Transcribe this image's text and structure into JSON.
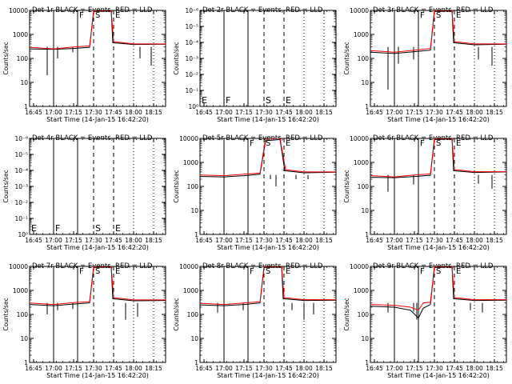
{
  "figure": {
    "xlabel": "Start Time (14-Jan-15 16:42:20)",
    "ylabel": "Counts/sec",
    "x_tick_labels": [
      "16:45",
      "17:00",
      "17:15",
      "17:30",
      "17:45",
      "18:00",
      "18:15"
    ],
    "colors": {
      "events": "#000000",
      "lld": "#ff0000"
    }
  },
  "chart_data": [
    {
      "type": "line",
      "title": "Det 1r BLACK = Events, RED = LLD",
      "x_range": [
        "16:42",
        "18:24"
      ],
      "y_scale": "log",
      "ylim": [
        1,
        10000
      ],
      "y_tick_labels": [
        "1",
        "10",
        "100",
        "1000",
        "10000"
      ],
      "solid_times": [
        "17:00",
        "17:18"
      ],
      "dashed_times": [
        "17:30",
        "17:45"
      ],
      "dotted_times": [
        "18:00",
        "18:15"
      ],
      "markers": [
        {
          "label": "F",
          "time": "17:18"
        },
        {
          "label": "S",
          "time": "17:30"
        },
        {
          "label": "E",
          "time": "17:45"
        }
      ],
      "series": [
        {
          "values": [
            [
              16.7,
              250
            ],
            [
              17.0,
              240
            ],
            [
              17.25,
              260
            ],
            [
              17.45,
              290
            ],
            [
              17.5,
              9000
            ],
            [
              17.72,
              9500
            ],
            [
              17.74,
              450
            ],
            [
              18.0,
              380
            ],
            [
              18.4,
              390
            ]
          ]
        },
        {
          "values": [
            [
              16.7,
              290
            ],
            [
              17.0,
              250
            ],
            [
              17.25,
              300
            ],
            [
              17.45,
              330
            ],
            [
              17.5,
              10000
            ],
            [
              17.72,
              10000
            ],
            [
              17.75,
              500
            ],
            [
              18.0,
              400
            ],
            [
              18.4,
              400
            ]
          ]
        }
      ],
      "spikes": [
        [
          16.92,
          20
        ],
        [
          17.05,
          100
        ],
        [
          17.24,
          180
        ],
        [
          18.08,
          100
        ],
        [
          18.22,
          50
        ]
      ]
    },
    {
      "type": "line",
      "title": "Det 2r BLACK = Events, RED = LLD",
      "x_range": [
        "16:42",
        "18:24"
      ],
      "y_scale": "log",
      "ylim": [
        1,
        1e-06
      ],
      "y_tick_labels": [
        "10⁰",
        "10⁻¹",
        "10⁻²",
        "10⁻³",
        "10⁻⁴",
        "10⁻⁵",
        "10⁻⁶"
      ],
      "solid_times": [
        "17:00",
        "17:18"
      ],
      "dashed_times": [
        "17:30",
        "17:45"
      ],
      "dotted_times": [
        "18:00",
        "18:15"
      ],
      "markers": [
        {
          "label": "F",
          "time": "17:00"
        },
        {
          "label": "S",
          "time": "17:30"
        },
        {
          "label": "E",
          "time": "17:45"
        }
      ],
      "series": [],
      "spikes": []
    },
    {
      "type": "line",
      "title": "Det 3r BLACK = Events, RED = LLD",
      "x_range": [
        "16:42",
        "18:24"
      ],
      "y_scale": "log",
      "ylim": [
        1,
        10000
      ],
      "y_tick_labels": [
        "1",
        "10",
        "100",
        "1000",
        "10000"
      ],
      "solid_times": [
        "17:00",
        "17:18"
      ],
      "dashed_times": [
        "17:30",
        "17:45"
      ],
      "dotted_times": [
        "18:00",
        "18:15"
      ],
      "markers": [
        {
          "label": "F",
          "time": "17:18"
        },
        {
          "label": "S",
          "time": "17:30"
        },
        {
          "label": "E",
          "time": "17:45"
        }
      ],
      "series": [
        {
          "values": [
            [
              16.7,
              180
            ],
            [
              17.0,
              160
            ],
            [
              17.25,
              190
            ],
            [
              17.45,
              220
            ],
            [
              17.5,
              9000
            ],
            [
              17.72,
              9500
            ],
            [
              17.74,
              450
            ],
            [
              18.0,
              370
            ],
            [
              18.4,
              390
            ]
          ]
        },
        {
          "values": [
            [
              16.7,
              210
            ],
            [
              17.0,
              180
            ],
            [
              17.25,
              220
            ],
            [
              17.45,
              260
            ],
            [
              17.5,
              10000
            ],
            [
              17.72,
              10000
            ],
            [
              17.75,
              500
            ],
            [
              18.0,
              400
            ],
            [
              18.4,
              400
            ]
          ]
        }
      ],
      "spikes": [
        [
          16.92,
          5
        ],
        [
          17.05,
          60
        ],
        [
          17.24,
          90
        ],
        [
          18.05,
          90
        ],
        [
          18.22,
          50
        ]
      ]
    },
    {
      "type": "line",
      "title": "Det 4r BLACK = Events, RED = LLD",
      "x_range": [
        "16:42",
        "18:24"
      ],
      "y_scale": "log",
      "ylim": [
        1,
        1e-06
      ],
      "y_tick_labels": [
        "10⁰",
        "10⁻¹",
        "10⁻²",
        "10⁻³",
        "10⁻⁴",
        "10⁻⁵",
        "10⁻⁶"
      ],
      "solid_times": [
        "17:00",
        "17:18"
      ],
      "dashed_times": [
        "17:30",
        "17:45"
      ],
      "dotted_times": [
        "18:00",
        "18:15"
      ],
      "markers": [
        {
          "label": "F",
          "time": "17:00"
        },
        {
          "label": "S",
          "time": "17:30"
        },
        {
          "label": "E",
          "time": "17:45"
        }
      ],
      "series": [],
      "spikes": []
    },
    {
      "type": "line",
      "title": "Det 5r BLACK = Events, RED = LLD",
      "x_range": [
        "16:42",
        "18:24"
      ],
      "y_scale": "log",
      "ylim": [
        1,
        10000
      ],
      "y_tick_labels": [
        "1",
        "10",
        "100",
        "1000",
        "10000"
      ],
      "solid_times": [
        "17:00",
        "17:18"
      ],
      "dashed_times": [
        "17:30",
        "17:45"
      ],
      "dotted_times": [
        "18:00",
        "18:15"
      ],
      "markers": [
        {
          "label": "F",
          "time": "17:18"
        },
        {
          "label": "S",
          "time": "17:30"
        },
        {
          "label": "E",
          "time": "17:45"
        }
      ],
      "series": [
        {
          "values": [
            [
              16.7,
              260
            ],
            [
              17.0,
              250
            ],
            [
              17.25,
              280
            ],
            [
              17.45,
              320
            ],
            [
              17.52,
              8000
            ],
            [
              17.7,
              9000
            ],
            [
              17.76,
              450
            ],
            [
              18.0,
              370
            ],
            [
              18.4,
              390
            ]
          ]
        },
        {
          "values": [
            [
              16.7,
              300
            ],
            [
              17.0,
              280
            ],
            [
              17.25,
              320
            ],
            [
              17.45,
              360
            ],
            [
              17.52,
              10000
            ],
            [
              17.7,
              10000
            ],
            [
              17.77,
              500
            ],
            [
              18.0,
              400
            ],
            [
              18.4,
              400
            ]
          ]
        }
      ],
      "spikes": [
        [
          17.58,
          200
        ],
        [
          17.65,
          100
        ],
        [
          17.9,
          200
        ],
        [
          18.05,
          200
        ]
      ]
    },
    {
      "type": "line",
      "title": "Det 6r BLACK = Events, RED = LLD",
      "x_range": [
        "16:42",
        "18:24"
      ],
      "y_scale": "log",
      "ylim": [
        1,
        10000
      ],
      "y_tick_labels": [
        "1",
        "10",
        "100",
        "1000",
        "10000"
      ],
      "solid_times": [
        "17:00",
        "17:18"
      ],
      "dashed_times": [
        "17:30",
        "17:45"
      ],
      "dotted_times": [
        "18:00",
        "18:15"
      ],
      "markers": [
        {
          "label": "F",
          "time": "17:18"
        },
        {
          "label": "S",
          "time": "17:30"
        },
        {
          "label": "E",
          "time": "17:45"
        }
      ],
      "series": [
        {
          "values": [
            [
              16.7,
              240
            ],
            [
              17.0,
              230
            ],
            [
              17.25,
              260
            ],
            [
              17.45,
              290
            ],
            [
              17.5,
              9000
            ],
            [
              17.72,
              9500
            ],
            [
              17.74,
              450
            ],
            [
              18.0,
              380
            ],
            [
              18.4,
              400
            ]
          ]
        },
        {
          "values": [
            [
              16.7,
              280
            ],
            [
              17.0,
              250
            ],
            [
              17.25,
              300
            ],
            [
              17.45,
              330
            ],
            [
              17.5,
              10000
            ],
            [
              17.72,
              10000
            ],
            [
              17.75,
              500
            ],
            [
              18.0,
              410
            ],
            [
              18.4,
              410
            ]
          ]
        }
      ],
      "spikes": [
        [
          16.92,
          60
        ],
        [
          17.24,
          120
        ],
        [
          18.05,
          130
        ],
        [
          18.22,
          80
        ]
      ]
    },
    {
      "type": "line",
      "title": "Det 7r BLACK = Events, RED = LLD",
      "x_range": [
        "16:42",
        "18:24"
      ],
      "y_scale": "log",
      "ylim": [
        1,
        10000
      ],
      "y_tick_labels": [
        "1",
        "10",
        "100",
        "1000",
        "10000"
      ],
      "solid_times": [
        "17:00",
        "17:18"
      ],
      "dashed_times": [
        "17:30",
        "17:45"
      ],
      "dotted_times": [
        "18:00",
        "18:15"
      ],
      "markers": [
        {
          "label": "F",
          "time": "17:18"
        },
        {
          "label": "S",
          "time": "17:30"
        },
        {
          "label": "E",
          "time": "17:45"
        }
      ],
      "series": [
        {
          "values": [
            [
              16.7,
              260
            ],
            [
              17.0,
              230
            ],
            [
              17.25,
              270
            ],
            [
              17.45,
              300
            ],
            [
              17.5,
              9000
            ],
            [
              17.72,
              9500
            ],
            [
              17.74,
              450
            ],
            [
              18.0,
              370
            ],
            [
              18.4,
              380
            ]
          ]
        },
        {
          "values": [
            [
              16.7,
              300
            ],
            [
              17.0,
              260
            ],
            [
              17.25,
              310
            ],
            [
              17.45,
              340
            ],
            [
              17.5,
              10000
            ],
            [
              17.72,
              10000
            ],
            [
              17.75,
              500
            ],
            [
              18.0,
              400
            ],
            [
              18.4,
              400
            ]
          ]
        }
      ],
      "spikes": [
        [
          16.92,
          100
        ],
        [
          17.05,
          150
        ],
        [
          17.24,
          170
        ],
        [
          17.9,
          60
        ],
        [
          18.05,
          80
        ]
      ]
    },
    {
      "type": "line",
      "title": "Det 8r BLACK = Events, RED = LLD",
      "x_range": [
        "16:42",
        "18:24"
      ],
      "y_scale": "log",
      "ylim": [
        1,
        10000
      ],
      "y_tick_labels": [
        "1",
        "10",
        "100",
        "1000",
        "10000"
      ],
      "solid_times": [
        "17:00",
        "17:18"
      ],
      "dashed_times": [
        "17:30",
        "17:45"
      ],
      "dotted_times": [
        "18:00",
        "18:15"
      ],
      "markers": [
        {
          "label": "F",
          "time": "17:18"
        },
        {
          "label": "S",
          "time": "17:30"
        },
        {
          "label": "E",
          "time": "17:45"
        }
      ],
      "series": [
        {
          "values": [
            [
              16.7,
              250
            ],
            [
              17.0,
              230
            ],
            [
              17.25,
              260
            ],
            [
              17.45,
              300
            ],
            [
              17.5,
              9000
            ],
            [
              17.72,
              9500
            ],
            [
              17.74,
              450
            ],
            [
              18.0,
              380
            ],
            [
              18.4,
              390
            ]
          ]
        },
        {
          "values": [
            [
              16.7,
              290
            ],
            [
              17.0,
              260
            ],
            [
              17.25,
              300
            ],
            [
              17.45,
              340
            ],
            [
              17.5,
              10000
            ],
            [
              17.72,
              10000
            ],
            [
              17.75,
              500
            ],
            [
              18.0,
              410
            ],
            [
              18.4,
              410
            ]
          ]
        }
      ],
      "spikes": [
        [
          16.92,
          120
        ],
        [
          17.24,
          150
        ],
        [
          17.85,
          150
        ],
        [
          18.0,
          60
        ],
        [
          18.12,
          100
        ]
      ]
    },
    {
      "type": "line",
      "title": "Det 9r BLACK = Events, RED = LLD",
      "x_range": [
        "16:42",
        "18:24"
      ],
      "y_scale": "log",
      "ylim": [
        1,
        10000
      ],
      "y_tick_labels": [
        "1",
        "10",
        "100",
        "1000",
        "10000"
      ],
      "solid_times": [
        "17:00",
        "17:18"
      ],
      "dashed_times": [
        "17:30",
        "17:45"
      ],
      "dotted_times": [
        "18:00",
        "18:15"
      ],
      "markers": [
        {
          "label": "F",
          "time": "17:18"
        },
        {
          "label": "S",
          "time": "17:30"
        },
        {
          "label": "E",
          "time": "17:45"
        }
      ],
      "series": [
        {
          "values": [
            [
              16.7,
              220
            ],
            [
              17.0,
              200
            ],
            [
              17.2,
              150
            ],
            [
              17.3,
              70
            ],
            [
              17.36,
              180
            ],
            [
              17.45,
              260
            ],
            [
              17.5,
              9000
            ],
            [
              17.72,
              9500
            ],
            [
              17.74,
              450
            ],
            [
              18.0,
              380
            ],
            [
              18.4,
              390
            ]
          ]
        },
        {
          "values": [
            [
              16.7,
              260
            ],
            [
              17.0,
              240
            ],
            [
              17.2,
              200
            ],
            [
              17.3,
              150
            ],
            [
              17.36,
              300
            ],
            [
              17.45,
              320
            ],
            [
              17.5,
              10000
            ],
            [
              17.72,
              10000
            ],
            [
              17.75,
              500
            ],
            [
              18.0,
              410
            ],
            [
              18.4,
              410
            ]
          ]
        }
      ],
      "spikes": [
        [
          16.92,
          120
        ],
        [
          17.24,
          130
        ],
        [
          17.28,
          60
        ],
        [
          17.95,
          150
        ],
        [
          18.1,
          120
        ]
      ]
    }
  ]
}
